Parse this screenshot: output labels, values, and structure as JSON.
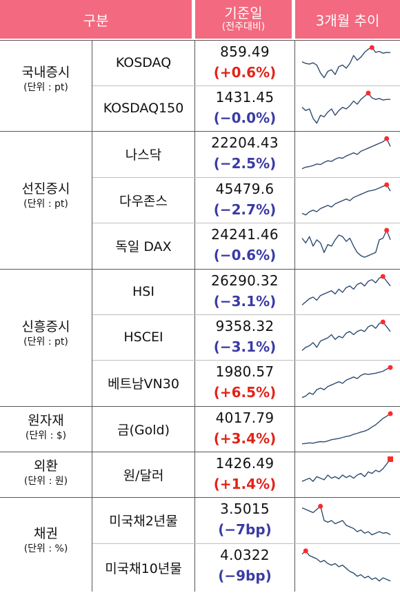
{
  "header": {
    "category": "구분",
    "value_title": "기준일",
    "value_sub": "(전주대비)",
    "trend": "3개월 추이"
  },
  "groups": [
    {
      "name": "국내증시",
      "unit": "(단위 : pt)"
    },
    {
      "name": "선진증시",
      "unit": "(단위 : pt)"
    },
    {
      "name": "신흥증시",
      "unit": "(단위 : pt)"
    },
    {
      "name": "원자재",
      "unit": "(단위 : $)"
    },
    {
      "name": "외환",
      "unit": "(단위 : 원)"
    },
    {
      "name": "채권",
      "unit": "(단위 : %)"
    }
  ],
  "rows": [
    {
      "name": "KOSDAQ",
      "value": "859.49",
      "change": "(+0.6%)",
      "dir": "up"
    },
    {
      "name": "KOSDAQ150",
      "value": "1431.45",
      "change": "(−0.0%)",
      "dir": "down"
    },
    {
      "name": "나스닥",
      "value": "22204.43",
      "change": "(−2.5%)",
      "dir": "down"
    },
    {
      "name": "다우존스",
      "value": "45479.6",
      "change": "(−2.7%)",
      "dir": "down"
    },
    {
      "name": "독일 DAX",
      "value": "24241.46",
      "change": "(−0.6%)",
      "dir": "down"
    },
    {
      "name": "HSI",
      "value": "26290.32",
      "change": "(−3.1%)",
      "dir": "down"
    },
    {
      "name": "HSCEI",
      "value": "9358.32",
      "change": "(−3.1%)",
      "dir": "down"
    },
    {
      "name": "베트남VN30",
      "value": "1980.57",
      "change": "(+6.5%)",
      "dir": "up"
    },
    {
      "name": "금(Gold)",
      "value": "4017.79",
      "change": "(+3.4%)",
      "dir": "up"
    },
    {
      "name": "원/달러",
      "value": "1426.49",
      "change": "(+1.4%)",
      "dir": "up"
    },
    {
      "name": "미국채2년물",
      "value": "3.5015",
      "change": "(−7bp)",
      "dir": "down"
    },
    {
      "name": "미국채10년물",
      "value": "4.0322",
      "change": "(−9bp)",
      "dir": "down"
    }
  ],
  "sparklines": [
    {
      "values": [
        0.55,
        0.5,
        0.48,
        0.52,
        0.45,
        0.2,
        0.05,
        0.25,
        0.3,
        0.15,
        0.4,
        0.45,
        0.35,
        0.5,
        0.75,
        0.6,
        0.7,
        0.85,
        0.95,
        1.0,
        0.85,
        0.88,
        0.82,
        0.85,
        0.84
      ],
      "marker_index": 19,
      "marker": "circle"
    },
    {
      "values": [
        0.55,
        0.45,
        0.5,
        0.2,
        0.05,
        0.3,
        0.25,
        0.4,
        0.5,
        0.3,
        0.45,
        0.55,
        0.5,
        0.6,
        0.75,
        0.65,
        0.8,
        0.9,
        1.0,
        0.85,
        0.8,
        0.83,
        0.78,
        0.8,
        0.8
      ],
      "marker_index": 18,
      "marker": "circle"
    },
    {
      "values": [
        0.05,
        0.1,
        0.12,
        0.15,
        0.2,
        0.18,
        0.25,
        0.3,
        0.28,
        0.35,
        0.4,
        0.38,
        0.45,
        0.5,
        0.55,
        0.5,
        0.6,
        0.65,
        0.7,
        0.75,
        0.8,
        0.85,
        0.9,
        1.0,
        0.75
      ],
      "marker_index": 23,
      "marker": "circle"
    },
    {
      "values": [
        0.1,
        0.05,
        0.15,
        0.2,
        0.15,
        0.25,
        0.3,
        0.35,
        0.3,
        0.4,
        0.45,
        0.5,
        0.55,
        0.5,
        0.6,
        0.65,
        0.7,
        0.75,
        0.8,
        0.82,
        0.85,
        0.9,
        0.95,
        1.0,
        0.8
      ],
      "marker_index": 23,
      "marker": "circle"
    },
    {
      "values": [
        0.75,
        0.6,
        0.8,
        0.5,
        0.7,
        0.6,
        0.3,
        0.55,
        0.5,
        0.7,
        0.85,
        0.8,
        0.65,
        0.75,
        0.5,
        0.3,
        0.2,
        0.15,
        0.2,
        0.25,
        0.3,
        0.7,
        0.75,
        1.0,
        0.7
      ],
      "marker_index": 23,
      "marker": "circle"
    },
    {
      "values": [
        0.1,
        0.2,
        0.3,
        0.35,
        0.25,
        0.4,
        0.45,
        0.5,
        0.55,
        0.45,
        0.6,
        0.5,
        0.65,
        0.7,
        0.6,
        0.75,
        0.8,
        0.7,
        0.85,
        0.9,
        0.8,
        0.95,
        1.0,
        0.85,
        0.7
      ],
      "marker_index": 22,
      "marker": "circle"
    },
    {
      "values": [
        0.1,
        0.2,
        0.25,
        0.35,
        0.2,
        0.4,
        0.45,
        0.5,
        0.6,
        0.45,
        0.55,
        0.5,
        0.65,
        0.7,
        0.6,
        0.7,
        0.75,
        0.7,
        0.85,
        0.9,
        0.8,
        0.95,
        1.0,
        0.85,
        0.7
      ],
      "marker_index": 22,
      "marker": "circle"
    },
    {
      "values": [
        0.05,
        0.1,
        0.2,
        0.15,
        0.3,
        0.35,
        0.3,
        0.4,
        0.45,
        0.5,
        0.55,
        0.5,
        0.6,
        0.65,
        0.7,
        0.65,
        0.75,
        0.8,
        0.78,
        0.8,
        0.82,
        0.85,
        0.88,
        0.95,
        1.0
      ],
      "marker_index": 24,
      "marker": "circle"
    },
    {
      "values": [
        0.05,
        0.06,
        0.08,
        0.07,
        0.1,
        0.12,
        0.11,
        0.14,
        0.18,
        0.2,
        0.22,
        0.25,
        0.28,
        0.3,
        0.35,
        0.38,
        0.42,
        0.45,
        0.5,
        0.58,
        0.65,
        0.75,
        0.85,
        0.92,
        1.0
      ],
      "marker_index": 24,
      "marker": "circle"
    },
    {
      "values": [
        0.3,
        0.35,
        0.4,
        0.3,
        0.45,
        0.4,
        0.35,
        0.5,
        0.4,
        0.45,
        0.38,
        0.5,
        0.42,
        0.48,
        0.4,
        0.5,
        0.55,
        0.45,
        0.6,
        0.55,
        0.65,
        0.6,
        0.7,
        0.85,
        1.0
      ],
      "marker_index": 24,
      "marker": "square"
    },
    {
      "values": [
        0.9,
        0.85,
        0.8,
        0.75,
        0.85,
        0.95,
        0.5,
        0.45,
        0.5,
        0.4,
        0.45,
        0.5,
        0.35,
        0.3,
        0.25,
        0.15,
        0.2,
        0.1,
        0.15,
        0.05,
        0.1,
        0.15,
        0.1,
        0.12,
        0.05
      ],
      "marker_index": 5,
      "marker": "circle"
    },
    {
      "values": [
        0.9,
        1.0,
        0.85,
        0.8,
        0.75,
        0.65,
        0.7,
        0.6,
        0.55,
        0.6,
        0.5,
        0.55,
        0.45,
        0.35,
        0.3,
        0.2,
        0.25,
        0.15,
        0.2,
        0.1,
        0.15,
        0.05,
        0.15,
        0.1,
        0.05
      ],
      "marker_index": 1,
      "marker": "circle"
    }
  ]
}
